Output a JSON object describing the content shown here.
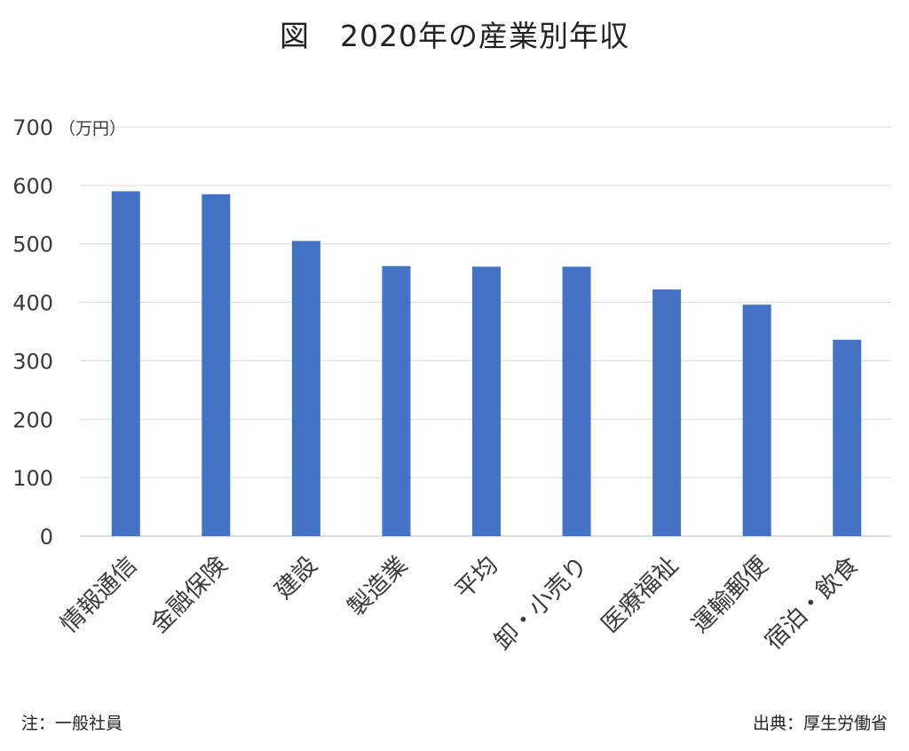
{
  "chart_data": {
    "type": "bar",
    "title": "図　2020年の産業別年収",
    "ylabel": "（万円）",
    "ylim": [
      0,
      700
    ],
    "yticks": [
      0,
      100,
      200,
      300,
      400,
      500,
      600,
      700
    ],
    "grid": true,
    "categories": [
      "情報通信",
      "金融保険",
      "建設",
      "製造業",
      "平均",
      "卸・小売り",
      "医療福祉",
      "運輸郵便",
      "宿泊・飲食"
    ],
    "values": [
      590,
      585,
      505,
      462,
      461,
      461,
      422,
      396,
      336
    ],
    "bar_color": "#4472c4"
  },
  "footer": {
    "note": "注：一般社員",
    "source": "出典：厚生労働省"
  }
}
